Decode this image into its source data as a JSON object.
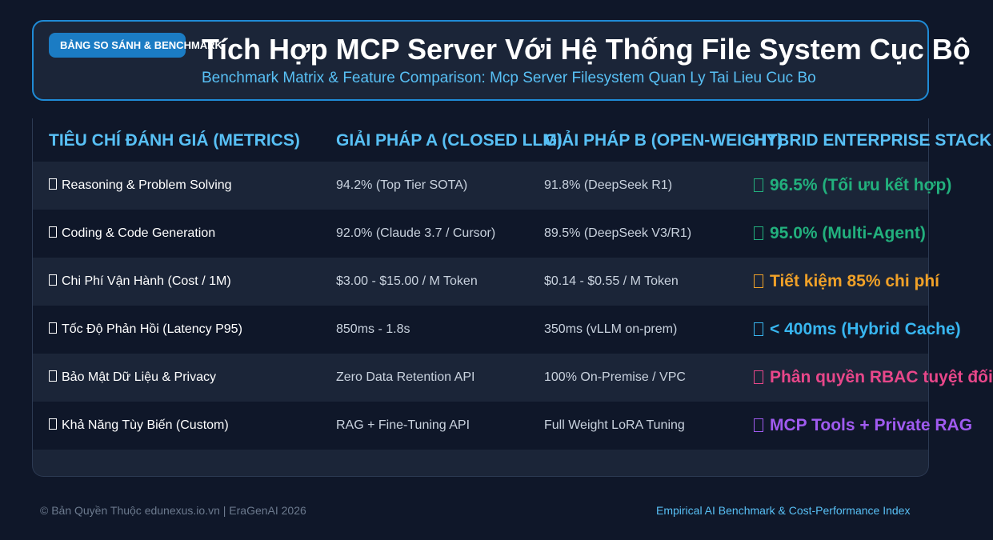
{
  "badge": "BẢNG SO SÁNH & BENCHMARK",
  "title": "Tích Hợp MCP Server Với Hệ Thống File System Cục Bộ",
  "subtitle": "Benchmark Matrix & Feature Comparison: Mcp Server Filesystem Quan Ly Tai Lieu Cuc Bo",
  "table": {
    "headers": [
      "TIÊU CHÍ ĐÁNH GIÁ (METRICS)",
      "GIẢI PHÁP A (CLOSED LLM)",
      "GIẢI PHÁP B (OPEN-WEIGHT)",
      "HYBRID ENTERPRISE STACK"
    ],
    "rows": [
      {
        "metric": "Reasoning & Problem Solving",
        "a": "94.2% (Top Tier SOTA)",
        "b": "91.8% (DeepSeek R1)",
        "hybrid": "96.5% (Tối ưu kết hợp)",
        "hybrid_color": "#22b07d"
      },
      {
        "metric": "Coding & Code Generation",
        "a": "92.0% (Claude 3.7 / Cursor)",
        "b": "89.5% (DeepSeek V3/R1)",
        "hybrid": "95.0% (Multi-Agent)",
        "hybrid_color": "#22b07d"
      },
      {
        "metric": "Chi Phí Vận Hành (Cost / 1M)",
        "a": "$3.00 - $15.00 / M Token",
        "b": "$0.14 - $0.55 / M Token",
        "hybrid": "Tiết kiệm 85% chi phí",
        "hybrid_color": "#f0a128"
      },
      {
        "metric": "Tốc Độ Phản Hồi (Latency P95)",
        "a": "850ms - 1.8s",
        "b": "350ms (vLLM on-prem)",
        "hybrid": "< 400ms (Hybrid Cache)",
        "hybrid_color": "#38b6f0"
      },
      {
        "metric": "Bảo Mật Dữ Liệu & Privacy",
        "a": "Zero Data Retention API",
        "b": "100% On-Premise / VPC",
        "hybrid": "Phân quyền RBAC tuyệt đối",
        "hybrid_color": "#e8478a"
      },
      {
        "metric": "Khả Năng Tùy Biến (Custom)",
        "a": "RAG + Fine-Tuning API",
        "b": "Full Weight LoRA Tuning",
        "hybrid": "MCP Tools + Private RAG",
        "hybrid_color": "#a05bf0"
      }
    ]
  },
  "footer": {
    "copyright": "© Bản Quyền Thuộc edunexus.io.vn | EraGenAI 2026",
    "tagline": "Empirical AI Benchmark & Cost-Performance Index"
  }
}
